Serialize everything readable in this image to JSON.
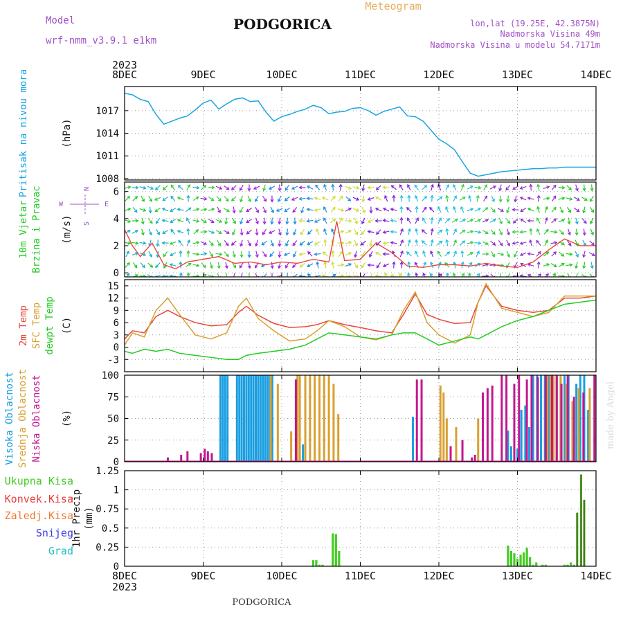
{
  "header": {
    "model_label": "Model",
    "model_name": "wrf-nmm_v3.9.1 e1km",
    "city": "PODGORICA",
    "meteogram": "Meteogram",
    "coords": "lon,lat (19.25E, 42.3875N)",
    "alt": "Nadmorska Visina 49m",
    "alt_model": "Nadmorska Visina u modelu 54.7171m"
  },
  "footer": {
    "city": "PODGORICA",
    "credit": "made by Angel"
  },
  "colors": {
    "pressure": "#1aa5e0",
    "temp2m": "#e8463c",
    "sfc": "#d8a030",
    "dew": "#22cc22",
    "high_cloud": "#1a9ee0",
    "mid_cloud": "#d8a030",
    "low_cloud": "#c01890",
    "precip_fill": "#44cc22",
    "snow": "#3a3ae0",
    "grad": "#20c0c0",
    "conv": "#e83a3a",
    "frz": "#f07a30",
    "wind_legend": "#a050c8"
  },
  "chart_data": {
    "type": "meteogram",
    "year": "2023",
    "days": [
      "8DEC",
      "9DEC",
      "10DEC",
      "11DEC",
      "12DEC",
      "13DEC",
      "14DEC"
    ],
    "panels": [
      {
        "id": "pressure",
        "type": "line",
        "ylabel": [
          "Pritisak na nivou mora"
        ],
        "unit": "(hPa)",
        "yticks": [
          1008,
          1011,
          1014,
          1017
        ],
        "ylim": [
          1007.8,
          1020.2
        ],
        "series": [
          {
            "color_key": "pressure",
            "x": [
              0,
              0.1,
              0.2,
              0.3,
              0.4,
              0.5,
              0.6,
              0.7,
              0.8,
              0.9,
              1.0,
              1.1,
              1.2,
              1.3,
              1.4,
              1.5,
              1.6,
              1.7,
              1.8,
              1.9,
              2.0,
              2.1,
              2.2,
              2.3,
              2.4,
              2.5,
              2.6,
              2.7,
              2.8,
              2.9,
              3.0,
              3.1,
              3.2,
              3.3,
              3.4,
              3.5,
              3.6,
              3.7,
              3.8,
              3.9,
              4.0,
              4.1,
              4.2,
              4.3,
              4.4,
              4.5,
              4.6,
              4.7,
              4.8,
              4.9,
              5.0,
              5.1,
              5.2,
              5.3,
              5.4,
              5.5,
              5.6,
              5.7,
              5.8,
              5.9,
              6.0
            ],
            "y": [
              1019.3,
              1019.1,
              1018.5,
              1018.2,
              1016.5,
              1015.2,
              1015.6,
              1016.0,
              1016.3,
              1017.1,
              1018.0,
              1018.4,
              1017.2,
              1017.9,
              1018.5,
              1018.7,
              1018.2,
              1018.3,
              1016.8,
              1015.6,
              1016.2,
              1016.5,
              1016.9,
              1017.2,
              1017.7,
              1017.4,
              1016.6,
              1016.8,
              1016.9,
              1017.3,
              1017.4,
              1017.0,
              1016.4,
              1016.9,
              1017.2,
              1017.5,
              1016.3,
              1016.2,
              1015.6,
              1014.4,
              1013.2,
              1012.6,
              1011.8,
              1010.2,
              1008.7,
              1008.3,
              1008.5,
              1008.7,
              1008.9,
              1009.0,
              1009.1,
              1009.2,
              1009.3,
              1009.3,
              1009.4,
              1009.4,
              1009.5,
              1009.5,
              1009.5,
              1009.5,
              1009.5
            ]
          }
        ]
      },
      {
        "id": "wind",
        "type": "line+arrows",
        "ylabel": [
          "10m Vjetar",
          "Brzina i Pravac"
        ],
        "unit": "(m/s)",
        "compass": [
          "N",
          "E",
          "S",
          "W"
        ],
        "yticks": [
          0,
          2,
          4,
          6
        ],
        "ylim": [
          -0.3,
          6.7
        ],
        "series": [
          {
            "color_key": "temp2m",
            "x": [
              0,
              0.1,
              0.2,
              0.35,
              0.5,
              0.65,
              0.8,
              1.0,
              1.2,
              1.4,
              1.6,
              1.8,
              2.0,
              2.2,
              2.4,
              2.6,
              2.7,
              2.8,
              3.0,
              3.2,
              3.4,
              3.6,
              3.8,
              4.0,
              4.2,
              4.4,
              4.6,
              4.8,
              5.0,
              5.2,
              5.4,
              5.6,
              5.8,
              6.0
            ],
            "y": [
              3.2,
              2.0,
              1.2,
              2.2,
              0.6,
              0.3,
              0.8,
              1.0,
              1.2,
              0.7,
              0.8,
              0.6,
              0.8,
              0.7,
              1.0,
              0.8,
              3.8,
              0.9,
              1.0,
              2.2,
              1.5,
              0.5,
              0.4,
              0.6,
              0.6,
              0.5,
              0.7,
              0.5,
              0.4,
              0.8,
              1.7,
              2.5,
              2.0,
              2.0
            ]
          }
        ]
      },
      {
        "id": "temp",
        "type": "line",
        "ylabel": [
          "2m Temp",
          "SFC Temp",
          "dewpt Temp"
        ],
        "unit": "(C)",
        "yticks": [
          -3,
          0,
          3,
          6,
          9,
          12,
          15
        ],
        "ylim": [
          -6,
          16.5
        ],
        "series": [
          {
            "name": "2m Temp",
            "color_key": "temp2m",
            "x": [
              0,
              0.1,
              0.25,
              0.4,
              0.55,
              0.7,
              0.9,
              1.1,
              1.3,
              1.45,
              1.55,
              1.7,
              1.9,
              2.1,
              2.3,
              2.45,
              2.6,
              2.8,
              3.0,
              3.2,
              3.4,
              3.55,
              3.7,
              3.85,
              4.0,
              4.2,
              4.4,
              4.5,
              4.6,
              4.8,
              5.0,
              5.2,
              5.4,
              5.6,
              5.8,
              6.0
            ],
            "y": [
              2,
              4,
              3.5,
              7.5,
              9,
              7.5,
              6,
              5.2,
              5.5,
              8.5,
              10,
              7.8,
              5.8,
              4.8,
              5,
              5.5,
              6.5,
              5.5,
              4.8,
              4,
              3.5,
              8,
              13,
              8,
              6.8,
              5.8,
              6,
              11,
              15,
              10,
              9,
              8.5,
              9,
              12,
              12,
              12.5
            ]
          },
          {
            "name": "SFC Temp",
            "color_key": "sfc",
            "x": [
              0,
              0.1,
              0.25,
              0.4,
              0.55,
              0.7,
              0.9,
              1.1,
              1.3,
              1.45,
              1.55,
              1.7,
              1.9,
              2.1,
              2.3,
              2.45,
              2.6,
              2.8,
              3.0,
              3.2,
              3.4,
              3.55,
              3.7,
              3.85,
              4.0,
              4.2,
              4.4,
              4.5,
              4.6,
              4.8,
              5.0,
              5.2,
              5.4,
              5.6,
              5.8,
              6.0
            ],
            "y": [
              0.5,
              3.5,
              2.5,
              9,
              12,
              8,
              3,
              2,
              3.5,
              10,
              12,
              7,
              4,
              1.5,
              2,
              4,
              6.5,
              5,
              2.5,
              1.8,
              3,
              9,
              13.5,
              6,
              3,
              1,
              3,
              11,
              15.5,
              9.5,
              8.5,
              7.5,
              8.5,
              12.5,
              12.5,
              12.5
            ]
          },
          {
            "name": "dewpt Temp",
            "color_key": "dew",
            "x": [
              0,
              0.1,
              0.25,
              0.4,
              0.55,
              0.7,
              0.9,
              1.1,
              1.3,
              1.45,
              1.55,
              1.7,
              1.9,
              2.1,
              2.3,
              2.45,
              2.6,
              2.8,
              3.0,
              3.2,
              3.4,
              3.55,
              3.7,
              3.85,
              4.0,
              4.2,
              4.4,
              4.5,
              4.6,
              4.8,
              5.0,
              5.2,
              5.4,
              5.6,
              5.8,
              6.0
            ],
            "y": [
              -1,
              -1.5,
              -0.5,
              -1,
              -0.5,
              -1.5,
              -2,
              -2.5,
              -3,
              -3,
              -2,
              -1.5,
              -1,
              -0.5,
              0.5,
              2,
              3.5,
              3,
              2.5,
              2,
              3,
              3.5,
              3.5,
              2,
              0.5,
              1.5,
              2.5,
              2,
              3,
              5,
              6.5,
              7.5,
              9,
              10.5,
              11,
              11.5
            ]
          }
        ]
      },
      {
        "id": "cloud",
        "type": "bar",
        "ylabel": [
          "Visoka Oblacnost",
          "Srednja Oblacnost",
          "Niska Oblacnost"
        ],
        "unit": "(%)",
        "yticks": [
          0,
          25,
          50,
          75,
          100
        ],
        "ylim": [
          0,
          100
        ],
        "series": [
          {
            "name": "Visoka Oblacnost",
            "color_key": "high_cloud",
            "x": [
              1.22,
              1.25,
              1.28,
              1.31,
              1.43,
              1.46,
              1.49,
              1.52,
              1.55,
              1.58,
              1.61,
              1.64,
              1.67,
              1.7,
              1.73,
              1.76,
              1.79,
              1.82,
              1.85,
              1.88,
              2.27,
              3.67,
              4.88,
              4.92,
              5.0,
              5.05,
              5.1,
              5.15,
              5.2,
              5.25,
              5.3,
              5.35,
              5.4,
              5.45,
              5.5,
              5.55,
              5.6,
              5.65,
              5.75,
              5.8,
              5.85,
              5.9
            ],
            "y": [
              100,
              100,
              100,
              100,
              100,
              100,
              100,
              100,
              100,
              100,
              100,
              100,
              100,
              100,
              100,
              100,
              100,
              100,
              100,
              100,
              20,
              52,
              36,
              18,
              15,
              60,
              65,
              40,
              100,
              100,
              100,
              100,
              100,
              100,
              100,
              95,
              100,
              100,
              90,
              100,
              100,
              60
            ]
          },
          {
            "name": "Srednja Oblacnost",
            "color_key": "mid_cloud",
            "x": [
              1.86,
              1.95,
              2.12,
              2.2,
              2.23,
              2.3,
              2.36,
              2.42,
              2.48,
              2.54,
              2.6,
              2.66,
              2.72,
              4.02,
              4.06,
              4.1,
              4.22,
              4.5,
              5.38,
              5.42,
              5.46,
              5.5,
              5.55,
              5.62,
              5.7,
              5.78,
              5.92
            ],
            "y": [
              100,
              90,
              35,
              100,
              100,
              100,
              100,
              100,
              100,
              100,
              100,
              90,
              55,
              88,
              80,
              50,
              40,
              50,
              100,
              100,
              100,
              100,
              100,
              90,
              70,
              85,
              85
            ]
          },
          {
            "name": "Niska Oblacnost",
            "color_key": "low_cloud",
            "x": [
              0.55,
              0.72,
              0.8,
              0.97,
              1.02,
              1.06,
              1.11,
              2.18,
              3.72,
              3.78,
              4.15,
              4.3,
              4.42,
              4.46,
              4.56,
              4.62,
              4.68,
              4.8,
              4.86,
              4.96,
              5.02,
              5.12,
              5.18,
              5.26,
              5.36,
              5.44,
              5.5,
              5.56,
              5.64,
              5.72,
              5.84,
              5.98
            ],
            "y": [
              5,
              8,
              12,
              10,
              15,
              12,
              10,
              95,
              95,
              95,
              18,
              25,
              5,
              8,
              80,
              85,
              88,
              100,
              100,
              90,
              100,
              95,
              100,
              98,
              100,
              100,
              100,
              90,
              100,
              75,
              80,
              100
            ]
          }
        ]
      },
      {
        "id": "precip",
        "type": "bar",
        "ylabel": [
          "1hr Precip"
        ],
        "unit": "(mm)",
        "legend": [
          "Ukupna Kisa",
          "Konvek.Kisa",
          "Zaledj.Kisa",
          "Snijeg",
          "Grad"
        ],
        "yticks": [
          0,
          0.25,
          0.5,
          0.75,
          1,
          1.25
        ],
        "ylim": [
          0,
          1.25
        ],
        "series": [
          {
            "name": "Ukupna Kisa",
            "color_key": "precip_fill",
            "x": [
              2.4,
              2.44,
              2.48,
              2.52,
              2.65,
              2.69,
              2.73,
              4.88,
              4.92,
              4.96,
              5.0,
              5.04,
              5.08,
              5.12,
              5.16,
              5.2,
              5.24,
              5.32,
              5.36,
              5.6,
              5.64,
              5.68,
              5.72,
              5.76,
              5.81,
              5.85
            ],
            "y": [
              0.08,
              0.08,
              0.02,
              0.02,
              0.43,
              0.42,
              0.2,
              0.27,
              0.2,
              0.17,
              0.1,
              0.15,
              0.18,
              0.24,
              0.12,
              0.02,
              0.05,
              0.02,
              0.02,
              0.02,
              0.02,
              0.05,
              0.02,
              0.7,
              1.2,
              0.87
            ]
          }
        ]
      }
    ]
  }
}
